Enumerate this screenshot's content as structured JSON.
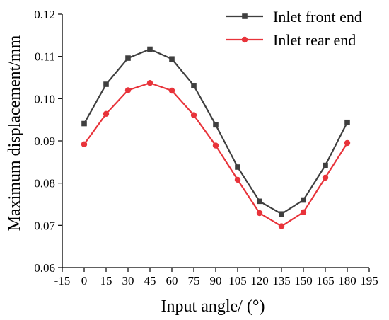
{
  "chart_data": {
    "type": "line",
    "title": "",
    "xlabel": "Input angle/ (°)",
    "ylabel": "Maximum displacement/mm",
    "xlim": [
      -15,
      195
    ],
    "ylim": [
      0.06,
      0.12
    ],
    "x_ticks": [
      "-15",
      "0",
      "15",
      "30",
      "45",
      "60",
      "75",
      "90",
      "105",
      "120",
      "135",
      "150",
      "165",
      "180",
      "195"
    ],
    "y_ticks": [
      "0.06",
      "0.07",
      "0.08",
      "0.09",
      "0.10",
      "0.11",
      "0.12"
    ],
    "x": [
      0,
      15,
      30,
      45,
      60,
      75,
      90,
      105,
      120,
      135,
      150,
      165,
      180
    ],
    "series": [
      {
        "name": "Inlet front end",
        "color": "#3f3f3f",
        "marker": "square",
        "values": [
          0.0941,
          0.1034,
          0.1096,
          0.1117,
          0.1094,
          0.1031,
          0.0938,
          0.0838,
          0.0757,
          0.0727,
          0.076,
          0.0842,
          0.0944
        ]
      },
      {
        "name": "Inlet rear end",
        "color": "#e8333a",
        "marker": "circle",
        "values": [
          0.0892,
          0.0964,
          0.102,
          0.1037,
          0.1019,
          0.0961,
          0.0889,
          0.0808,
          0.0729,
          0.0698,
          0.0731,
          0.0813,
          0.0895
        ]
      }
    ],
    "grid": false,
    "legend_position": "top-right"
  }
}
